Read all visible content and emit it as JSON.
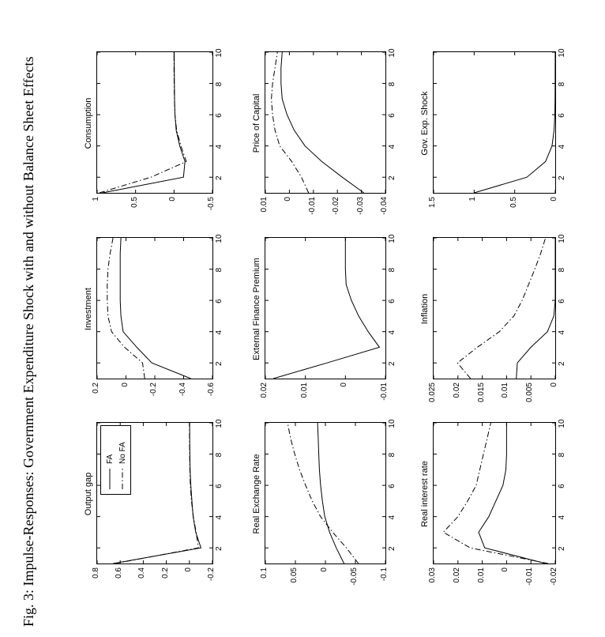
{
  "figure": {
    "caption": "Fig. 3: Impulse-Responses: Government Expenditure Shock with and without Balance Sheet Effects",
    "line_color": "#000000",
    "background_color": "#ffffff"
  },
  "legend": {
    "entries": [
      {
        "label": "FA",
        "style": "solid"
      },
      {
        "label": "No FA",
        "style": "dashdot"
      }
    ]
  },
  "chart_data": [
    {
      "type": "line",
      "title": "Output gap",
      "row": 0,
      "col": 0,
      "xlim": [
        1,
        10
      ],
      "xticks": [
        2,
        4,
        6,
        8,
        10
      ],
      "ylim": [
        -0.2,
        0.8
      ],
      "yticks": [
        0.8,
        0.6,
        0.4,
        0.2,
        0,
        -0.2
      ],
      "legend_labels": [
        "FA",
        "No FA"
      ],
      "x": [
        1,
        2,
        3,
        4,
        5,
        6,
        7,
        8,
        9,
        10
      ],
      "series": [
        {
          "name": "FA",
          "style": "solid",
          "values": [
            0.66,
            -0.1,
            -0.055,
            -0.032,
            -0.022,
            -0.012,
            -0.006,
            -0.004,
            -0.003,
            -0.002
          ]
        },
        {
          "name": "No FA",
          "style": "dashdot",
          "values": [
            0.645,
            -0.078,
            -0.058,
            -0.034,
            -0.018,
            -0.008,
            -0.004,
            -0.002,
            -0.001,
            -0.001
          ]
        }
      ]
    },
    {
      "type": "line",
      "title": "Investment",
      "row": 0,
      "col": 1,
      "xlim": [
        1,
        10
      ],
      "xticks": [
        2,
        4,
        6,
        8,
        10
      ],
      "ylim": [
        -0.6,
        0.2
      ],
      "yticks": [
        0.2,
        0,
        -0.2,
        -0.4,
        -0.6
      ],
      "x": [
        1,
        2,
        3,
        4,
        5,
        6,
        7,
        8,
        9,
        10
      ],
      "series": [
        {
          "name": "FA",
          "style": "solid",
          "values": [
            -0.45,
            -0.18,
            -0.075,
            0.02,
            0.035,
            0.04,
            0.04,
            0.04,
            0.04,
            0.035
          ]
        },
        {
          "name": "No FA",
          "style": "dashdot",
          "values": [
            -0.13,
            -0.115,
            0.01,
            0.1,
            0.125,
            0.13,
            0.13,
            0.125,
            0.11,
            0.09
          ]
        }
      ]
    },
    {
      "type": "line",
      "title": "Consumption",
      "row": 0,
      "col": 2,
      "xlim": [
        1,
        10
      ],
      "xticks": [
        2,
        4,
        6,
        8,
        10
      ],
      "ylim": [
        -0.5,
        1
      ],
      "yticks": [
        1,
        0.5,
        0,
        -0.5
      ],
      "x": [
        1,
        2,
        3,
        4,
        5,
        6,
        7,
        8,
        9,
        10
      ],
      "series": [
        {
          "name": "FA",
          "style": "solid",
          "values": [
            0.93,
            -0.123,
            -0.142,
            -0.075,
            -0.028,
            -0.012,
            -0.007,
            -0.005,
            -0.004,
            -0.003
          ]
        },
        {
          "name": "No FA",
          "style": "dashdot",
          "values": [
            0.97,
            0.3,
            -0.16,
            -0.09,
            -0.035,
            -0.012,
            -0.005,
            -0.002,
            0.0,
            0.0
          ]
        }
      ]
    },
    {
      "type": "line",
      "title": "Real Exchange Rate",
      "row": 1,
      "col": 0,
      "xlim": [
        1,
        10
      ],
      "xticks": [
        2,
        4,
        6,
        8,
        10
      ],
      "ylim": [
        -0.1,
        0.1
      ],
      "yticks": [
        0.1,
        0.05,
        0,
        -0.05,
        -0.1
      ],
      "x": [
        1,
        2,
        3,
        4,
        5,
        6,
        7,
        8,
        9,
        10
      ],
      "series": [
        {
          "name": "FA",
          "style": "solid",
          "values": [
            -0.031,
            -0.018,
            -0.007,
            0.001,
            0.005,
            0.008,
            0.01,
            0.011,
            0.012,
            0.013
          ]
        },
        {
          "name": "No FA",
          "style": "dashdot",
          "values": [
            -0.055,
            -0.035,
            -0.012,
            0.008,
            0.022,
            0.033,
            0.043,
            0.051,
            0.058,
            0.063
          ]
        }
      ]
    },
    {
      "type": "line",
      "title": "External Finance Premium",
      "row": 1,
      "col": 1,
      "xlim": [
        1,
        10
      ],
      "xticks": [
        2,
        4,
        6,
        8,
        10
      ],
      "ylim": [
        -0.01,
        0.02
      ],
      "yticks": [
        0.02,
        0.01,
        0,
        -0.01
      ],
      "x": [
        1,
        2,
        3,
        4,
        5,
        6,
        7,
        8,
        9,
        10
      ],
      "series": [
        {
          "name": "FA",
          "style": "solid",
          "values": [
            0.018,
            0.0046,
            -0.0085,
            -0.0057,
            -0.0033,
            -0.0015,
            -0.0002,
            0,
            0,
            0
          ]
        }
      ]
    },
    {
      "type": "line",
      "title": "Price of Capital",
      "row": 1,
      "col": 2,
      "xlim": [
        1,
        10
      ],
      "xticks": [
        2,
        4,
        6,
        8,
        10
      ],
      "ylim": [
        -0.04,
        0.01
      ],
      "yticks": [
        0.01,
        0,
        -0.01,
        -0.02,
        -0.03,
        -0.04
      ],
      "x": [
        1,
        2,
        3,
        4,
        5,
        6,
        7,
        8,
        9,
        10
      ],
      "series": [
        {
          "name": "FA",
          "style": "solid",
          "values": [
            -0.031,
            -0.022,
            -0.0135,
            -0.0065,
            -0.002,
            0.001,
            0.003,
            0.0035,
            0.0035,
            0.003
          ]
        },
        {
          "name": "No FA",
          "style": "dashdot",
          "values": [
            -0.008,
            -0.005,
            -0.001,
            0.004,
            0.006,
            0.007,
            0.0075,
            0.007,
            0.006,
            0.005
          ]
        }
      ]
    },
    {
      "type": "line",
      "title": "Real interest rate",
      "row": 2,
      "col": 0,
      "xlim": [
        1,
        10
      ],
      "xticks": [
        2,
        4,
        6,
        8,
        10
      ],
      "ylim": [
        -0.02,
        0.03
      ],
      "yticks": [
        0.03,
        0.02,
        0.01,
        0,
        -0.01,
        -0.02
      ],
      "x": [
        1,
        2,
        3,
        4,
        5,
        6,
        7,
        8,
        9,
        10
      ],
      "series": [
        {
          "name": "FA",
          "style": "solid",
          "values": [
            -0.016,
            0.009,
            0.0115,
            0.0073,
            0.0044,
            0.0015,
            0.0003,
            0,
            0,
            0
          ]
        },
        {
          "name": "No FA",
          "style": "dashdot",
          "values": [
            -0.017,
            0.015,
            0.026,
            0.02,
            0.016,
            0.0125,
            0.011,
            0.0095,
            0.008,
            0.0065
          ]
        }
      ]
    },
    {
      "type": "line",
      "title": "Inflation",
      "row": 2,
      "col": 1,
      "xlim": [
        1,
        10
      ],
      "xticks": [
        2,
        4,
        6,
        8,
        10
      ],
      "ylim": [
        0,
        0.025
      ],
      "yticks": [
        0.025,
        0.02,
        0.015,
        0.01,
        0.005,
        0
      ],
      "x": [
        1,
        2,
        3,
        4,
        5,
        6,
        7,
        8,
        9,
        10
      ],
      "series": [
        {
          "name": "FA",
          "style": "solid",
          "values": [
            0.008,
            0.0078,
            0.005,
            0.0016,
            0.0003,
            0,
            0,
            0,
            0,
            0
          ]
        },
        {
          "name": "No FA",
          "style": "dashdot",
          "values": [
            0.0174,
            0.0201,
            0.016,
            0.0115,
            0.0085,
            0.0068,
            0.0055,
            0.0042,
            0.003,
            0.002
          ]
        }
      ]
    },
    {
      "type": "line",
      "title": "Gov. Exp. Shock",
      "row": 2,
      "col": 2,
      "xlim": [
        1,
        10
      ],
      "xticks": [
        2,
        4,
        6,
        8,
        10
      ],
      "ylim": [
        0,
        1.5
      ],
      "yticks": [
        1.5,
        1,
        0.5,
        0
      ],
      "x": [
        1,
        2,
        3,
        4,
        5,
        6,
        7,
        8,
        9,
        10
      ],
      "series": [
        {
          "name": "FA",
          "style": "solid",
          "values": [
            1.0,
            0.35,
            0.12,
            0.04,
            0.015,
            0.005,
            0.002,
            0.001,
            0.0005,
            0.0002
          ]
        }
      ]
    }
  ]
}
